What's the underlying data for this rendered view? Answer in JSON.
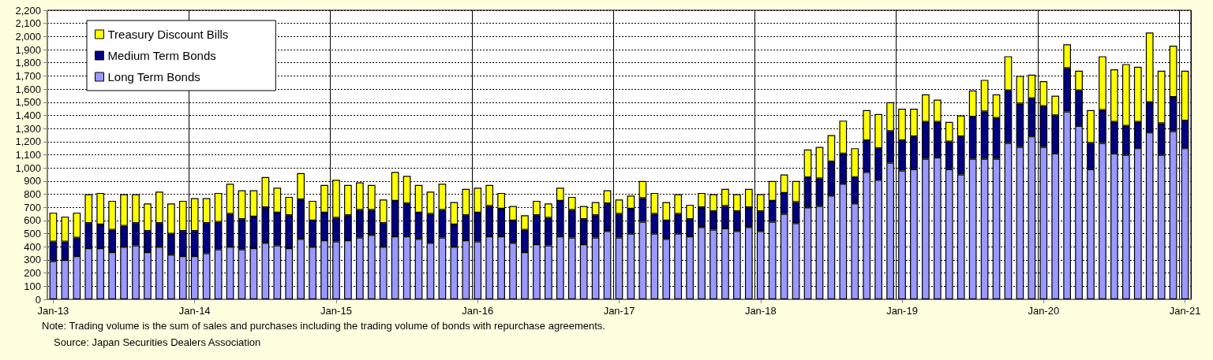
{
  "chart_data": {
    "type": "bar",
    "stacked": true,
    "categories": [
      "Jan-13",
      null,
      null,
      null,
      null,
      null,
      null,
      null,
      null,
      null,
      null,
      null,
      "Jan-14",
      null,
      null,
      null,
      null,
      null,
      null,
      null,
      null,
      null,
      null,
      null,
      "Jan-15",
      null,
      null,
      null,
      null,
      null,
      null,
      null,
      null,
      null,
      null,
      null,
      "Jan-16",
      null,
      null,
      null,
      null,
      null,
      null,
      null,
      null,
      null,
      null,
      null,
      "Jan-17",
      null,
      null,
      null,
      null,
      null,
      null,
      null,
      null,
      null,
      null,
      null,
      "Jan-18",
      null,
      null,
      null,
      null,
      null,
      null,
      null,
      null,
      null,
      null,
      null,
      "Jan-19",
      null,
      null,
      null,
      null,
      null,
      null,
      null,
      null,
      null,
      null,
      null,
      "Jan-20",
      null,
      null,
      null,
      null,
      null,
      null,
      null,
      null,
      null,
      null,
      null,
      "Jan-21"
    ],
    "series": [
      {
        "name": "Long Term Bonds",
        "color": "#9999ff",
        "values": [
          290,
          300,
          330,
          390,
          390,
          360,
          400,
          410,
          360,
          400,
          340,
          330,
          330,
          350,
          380,
          400,
          380,
          390,
          430,
          410,
          390,
          460,
          400,
          450,
          440,
          450,
          470,
          490,
          400,
          480,
          480,
          460,
          430,
          470,
          400,
          450,
          440,
          480,
          480,
          430,
          360,
          420,
          410,
          480,
          470,
          420,
          470,
          520,
          470,
          500,
          590,
          500,
          460,
          500,
          480,
          550,
          530,
          540,
          520,
          550,
          520,
          590,
          650,
          580,
          700,
          710,
          790,
          880,
          730,
          970,
          910,
          1040,
          980,
          990,
          1070,
          1080,
          990,
          950,
          1070,
          1070,
          1070,
          1190,
          1160,
          1240,
          1160,
          1110,
          1430,
          1320,
          990,
          1190,
          1110,
          1100,
          1150,
          1270,
          1100,
          1280,
          1150
        ]
      },
      {
        "name": "Medium Term Bonds",
        "color": "#000080",
        "values": [
          150,
          140,
          140,
          190,
          180,
          170,
          160,
          170,
          160,
          180,
          160,
          190,
          190,
          230,
          210,
          250,
          230,
          240,
          270,
          250,
          250,
          300,
          200,
          210,
          180,
          190,
          210,
          190,
          180,
          270,
          250,
          200,
          220,
          210,
          170,
          190,
          220,
          230,
          210,
          170,
          170,
          220,
          210,
          270,
          210,
          190,
          170,
          210,
          180,
          190,
          180,
          150,
          140,
          150,
          130,
          150,
          140,
          170,
          150,
          150,
          150,
          160,
          160,
          160,
          230,
          210,
          260,
          230,
          200,
          240,
          240,
          240,
          230,
          250,
          280,
          270,
          210,
          290,
          320,
          360,
          310,
          400,
          330,
          290,
          310,
          290,
          330,
          270,
          200,
          250,
          240,
          220,
          200,
          230,
          240,
          260,
          210
        ]
      },
      {
        "name": "Treasury Discount Bills",
        "color": "#ffff00",
        "values": [
          220,
          190,
          190,
          220,
          240,
          220,
          240,
          220,
          210,
          240,
          230,
          230,
          250,
          190,
          220,
          230,
          220,
          200,
          230,
          190,
          140,
          200,
          150,
          210,
          290,
          230,
          210,
          190,
          180,
          220,
          210,
          210,
          170,
          200,
          170,
          200,
          190,
          160,
          120,
          110,
          110,
          110,
          110,
          100,
          100,
          100,
          100,
          100,
          110,
          100,
          130,
          160,
          140,
          150,
          110,
          110,
          130,
          130,
          130,
          140,
          130,
          150,
          140,
          160,
          210,
          240,
          200,
          250,
          220,
          230,
          260,
          220,
          240,
          210,
          210,
          170,
          150,
          160,
          200,
          240,
          180,
          260,
          210,
          180,
          190,
          150,
          180,
          150,
          250,
          410,
          400,
          470,
          420,
          530,
          400,
          390,
          380
        ]
      }
    ],
    "ylim": [
      0,
      2200
    ],
    "yticks": [
      0,
      100,
      200,
      300,
      400,
      500,
      600,
      700,
      800,
      900,
      {
        "value": 1000,
        "label": "1,000"
      },
      {
        "value": 1100,
        "label": "1,100"
      },
      {
        "value": 1200,
        "label": "1,200"
      },
      {
        "value": 1300,
        "label": "1,300"
      },
      {
        "value": 1400,
        "label": "1,400"
      },
      {
        "value": 1500,
        "label": "1,500"
      },
      {
        "value": 1600,
        "label": "1,600"
      },
      {
        "value": 1700,
        "label": "1,700"
      },
      {
        "value": 1800,
        "label": "1,800"
      },
      {
        "value": 1900,
        "label": "1,900"
      },
      {
        "value": 2000,
        "label": "2,000"
      },
      {
        "value": 2100,
        "label": "2,100"
      },
      {
        "value": 2200,
        "label": "2,200"
      }
    ],
    "grid": true,
    "legend": "top left",
    "annotations": [
      "Note: Trading volume is the sum of sales and purchases including the trading volume of bonds with repurchase agreements.",
      "Source: Japan Securities Dealers Association"
    ]
  }
}
